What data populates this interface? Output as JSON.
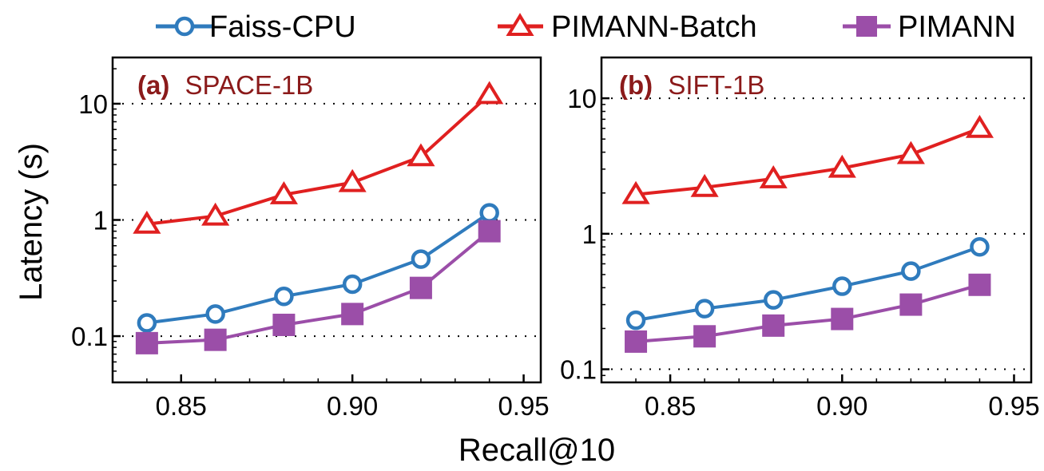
{
  "figure": {
    "ylabel": "Latency (s)",
    "xlabel": "Recall@10",
    "legend": [
      {
        "label": "Faiss-CPU",
        "color": "#2f7bbd",
        "marker": "circle-open"
      },
      {
        "label": "PIMANN-Batch",
        "color": "#e02020",
        "marker": "triangle-open"
      },
      {
        "label": "PIMANN",
        "color": "#9b4ea8",
        "marker": "square-filled"
      }
    ]
  },
  "chart_data": [
    {
      "type": "line",
      "panel": "(a)",
      "title": "SPACE-1B",
      "xlabel": "Recall@10",
      "ylabel": "Latency (s)",
      "yscale": "log",
      "xlim": [
        0.83,
        0.955
      ],
      "ylim": [
        0.04,
        25
      ],
      "xticks": [
        0.85,
        0.9,
        0.95
      ],
      "xtick_labels": [
        "0.85",
        "0.90",
        "0.95"
      ],
      "yticks": [
        0.1,
        1,
        10
      ],
      "ytick_labels": [
        "0.1",
        "1",
        "10"
      ],
      "grid": "horizontal-dotted",
      "x": [
        0.84,
        0.86,
        0.88,
        0.9,
        0.92,
        0.94
      ],
      "series": [
        {
          "name": "Faiss-CPU",
          "values": [
            0.13,
            0.155,
            0.22,
            0.28,
            0.46,
            1.15
          ]
        },
        {
          "name": "PIMANN-Batch",
          "values": [
            0.92,
            1.08,
            1.65,
            2.1,
            3.5,
            12
          ]
        },
        {
          "name": "PIMANN",
          "values": [
            0.087,
            0.093,
            0.125,
            0.155,
            0.26,
            0.8
          ]
        }
      ]
    },
    {
      "type": "line",
      "panel": "(b)",
      "title": "SIFT-1B",
      "xlabel": "Recall@10",
      "ylabel": "Latency (s)",
      "yscale": "log",
      "xlim": [
        0.83,
        0.955
      ],
      "ylim": [
        0.08,
        20
      ],
      "xticks": [
        0.85,
        0.9,
        0.95
      ],
      "xtick_labels": [
        "0.85",
        "0.90",
        "0.95"
      ],
      "yticks": [
        0.1,
        1,
        10
      ],
      "ytick_labels": [
        "0.1",
        "1",
        "10"
      ],
      "grid": "horizontal-dotted",
      "x": [
        0.84,
        0.86,
        0.88,
        0.9,
        0.92,
        0.94
      ],
      "series": [
        {
          "name": "Faiss-CPU",
          "values": [
            0.23,
            0.28,
            0.325,
            0.41,
            0.53,
            0.8
          ]
        },
        {
          "name": "PIMANN-Batch",
          "values": [
            1.95,
            2.2,
            2.55,
            3.05,
            3.85,
            6.0
          ]
        },
        {
          "name": "PIMANN",
          "values": [
            0.16,
            0.175,
            0.21,
            0.235,
            0.3,
            0.42
          ]
        }
      ]
    }
  ]
}
